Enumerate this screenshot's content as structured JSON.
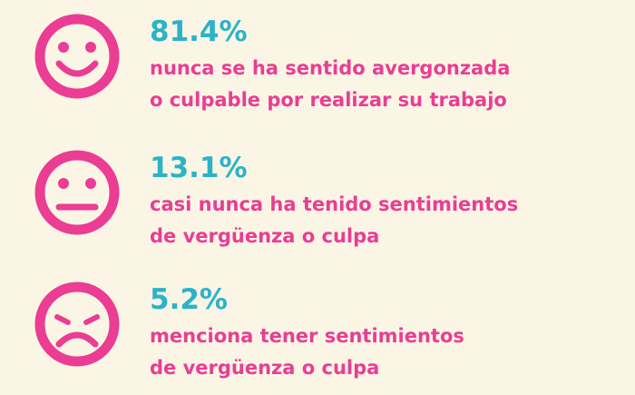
{
  "items": [
    {
      "face": "happy",
      "percent": "81.4%",
      "lines": [
        "nunca se ha sentido avergonzada",
        "o culpable por realizar su trabajo"
      ]
    },
    {
      "face": "neutral",
      "percent": "13.1%",
      "lines": [
        "casi nunca ha tenido sentimientos",
        "de vergüenza o culpa"
      ]
    },
    {
      "face": "sad",
      "percent": "5.2%",
      "lines": [
        "menciona tener sentimientos",
        "de vergüenza o culpa"
      ]
    }
  ]
}
